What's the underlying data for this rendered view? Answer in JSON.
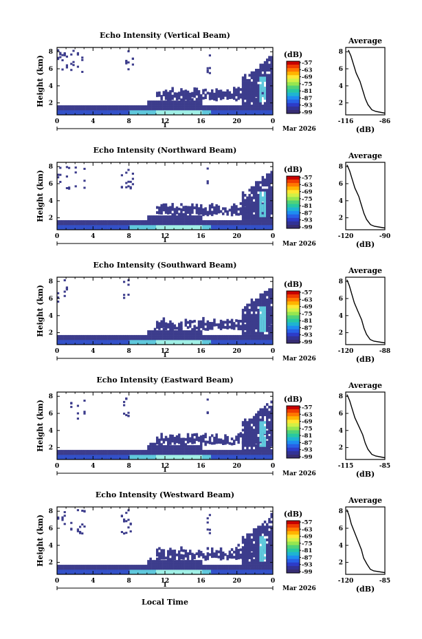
{
  "chart_data": {
    "type": "heatmap",
    "date_label": "Mar 2026",
    "day_label": "1",
    "shared_xlabel": "Local Time",
    "time_ticks": [
      0,
      4,
      8,
      12,
      16,
      20,
      0
    ],
    "height_ticks": [
      2,
      4,
      6,
      8
    ],
    "height_range_km": [
      0.6,
      8.5
    ],
    "colorbar": {
      "unit_label": "(dB)",
      "tick_labels": [
        "-57",
        "-63",
        "-69",
        "-75",
        "-81",
        "-87",
        "-93",
        "-99"
      ],
      "colors": [
        "#c80000",
        "#f03c00",
        "#ff7800",
        "#ffb400",
        "#ffe632",
        "#d2f046",
        "#96e650",
        "#50d278",
        "#28c8a0",
        "#1eb4d2",
        "#1e8cf0",
        "#2860e6",
        "#2d3cc8",
        "#323296",
        "#372d73"
      ]
    },
    "average_title": "Average",
    "average_xlabel": "(dB)",
    "colors": {
      "echo_dark": "#3c3c8c",
      "echo_mid": "#3250c8",
      "echo_light": "#5fc8dc",
      "echo_bright": "#a0f0e6"
    },
    "panels": [
      {
        "title": "Echo Intensity (Vertical Beam)",
        "ylabel": "Height (km)",
        "avg_xticks": [
          "-116",
          "-86"
        ],
        "avg_xrange": [
          -116,
          -86
        ],
        "avg_profile": {
          "height_km": [
            8.2,
            7.5,
            6.5,
            5.5,
            4.5,
            3.5,
            2.5,
            1.8,
            1.2,
            1.0,
            0.8
          ],
          "db": [
            -114,
            -112,
            -110,
            -108,
            -105,
            -103,
            -101,
            -99,
            -96,
            -93,
            -86
          ]
        }
      },
      {
        "title": "Echo Intensity (Northward Beam)",
        "ylabel": "Height (km)",
        "avg_xticks": [
          "-120",
          "-90"
        ],
        "avg_xrange": [
          -120,
          -90
        ],
        "avg_profile": {
          "height_km": [
            8.2,
            7.5,
            6.5,
            5.5,
            4.5,
            3.5,
            2.5,
            1.8,
            1.2,
            1.0,
            0.8
          ],
          "db": [
            -119,
            -117,
            -115,
            -113,
            -110,
            -108,
            -106,
            -104,
            -101,
            -98,
            -90
          ]
        }
      },
      {
        "title": "Echo Intensity (Southward Beam)",
        "ylabel": "Height (km)",
        "avg_xticks": [
          "-120",
          "-88"
        ],
        "avg_xrange": [
          -120,
          -88
        ],
        "avg_profile": {
          "height_km": [
            8.2,
            7.5,
            6.5,
            5.5,
            4.5,
            3.5,
            2.5,
            1.8,
            1.2,
            1.0,
            0.8
          ],
          "db": [
            -119,
            -117,
            -115,
            -113,
            -110,
            -107,
            -105,
            -103,
            -100,
            -97,
            -88
          ]
        }
      },
      {
        "title": "Echo Intensity (Eastward Beam)",
        "ylabel": "Height (km)",
        "avg_xticks": [
          "-115",
          "-85"
        ],
        "avg_xrange": [
          -115,
          -85
        ],
        "avg_profile": {
          "height_km": [
            8.2,
            7.5,
            6.5,
            5.5,
            4.5,
            3.5,
            2.5,
            1.8,
            1.2,
            1.0,
            0.8
          ],
          "db": [
            -114,
            -112,
            -110,
            -108,
            -105,
            -102,
            -100,
            -98,
            -95,
            -92,
            -85
          ]
        }
      },
      {
        "title": "Echo Intensity (Westward Beam)",
        "ylabel": "Height (km)",
        "avg_xticks": [
          "-120",
          "-85"
        ],
        "avg_xrange": [
          -120,
          -85
        ],
        "avg_profile": {
          "height_km": [
            8.2,
            7.5,
            6.5,
            5.5,
            4.5,
            3.5,
            2.5,
            1.8,
            1.2,
            1.0,
            0.8
          ],
          "db": [
            -119,
            -117,
            -115,
            -112,
            -109,
            -106,
            -104,
            -101,
            -98,
            -95,
            -85
          ]
        }
      }
    ]
  }
}
